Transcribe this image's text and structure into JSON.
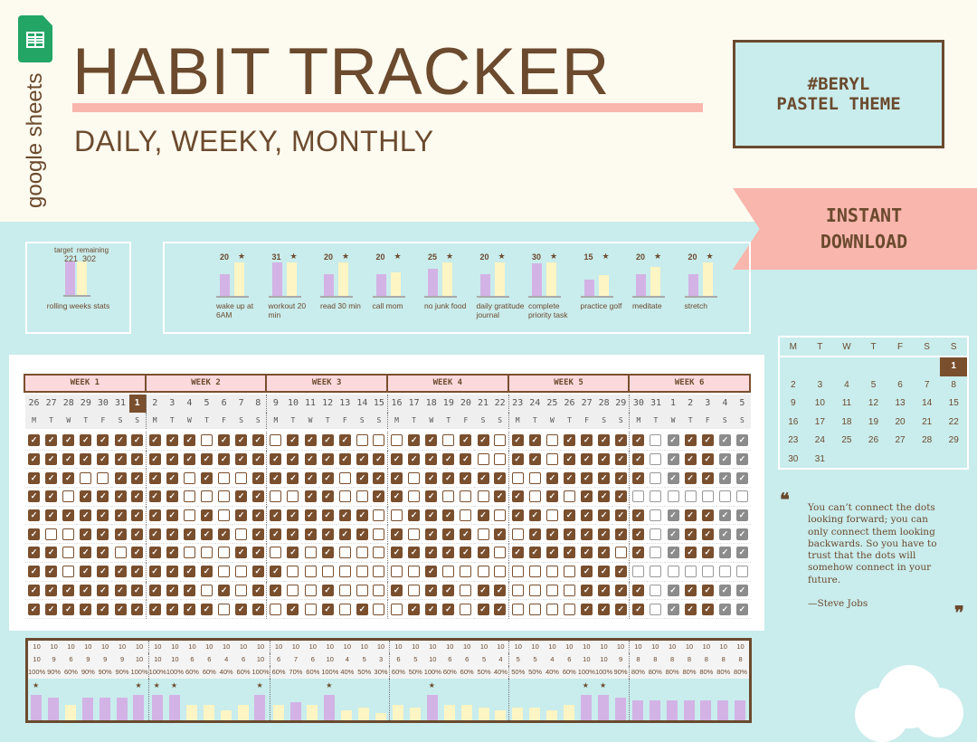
{
  "brand": {
    "app": "google sheets",
    "icon": "google-sheets-icon"
  },
  "header": {
    "title": "HABIT TRACKER",
    "subtitle": "DAILY, WEEKY, MONTHLY"
  },
  "theme_badge": {
    "line1": "#BERYL",
    "line2": "PASTEL THEME"
  },
  "banner": {
    "line1": "INSTANT",
    "line2": "DOWNLOAD"
  },
  "colors": {
    "brown": "#6b4a2e",
    "pink": "#f9b6ad",
    "teal": "#c9ecec",
    "cream": "#fdfbf0",
    "purple": "#d3b3e5",
    "yellow": "#fdf5c4",
    "header_pink": "#fcd9dc"
  },
  "rolling": {
    "target_label": "target",
    "remaining_label": "remaining",
    "target": "221",
    "remaining": "302",
    "label": "rolling weeks stats"
  },
  "habits": [
    {
      "name": "wake up at 6AM",
      "count": "20",
      "done": 20,
      "goal": 31
    },
    {
      "name": "workout 20 min",
      "count": "31",
      "done": 31,
      "goal": 31
    },
    {
      "name": "read 30 min",
      "count": "20",
      "done": 20,
      "goal": 31
    },
    {
      "name": "call mom",
      "count": "20",
      "done": 20,
      "goal": 22
    },
    {
      "name": "no junk food",
      "count": "25",
      "done": 25,
      "goal": 31
    },
    {
      "name": "daily gratitude journal",
      "count": "20",
      "done": 20,
      "goal": 31
    },
    {
      "name": "complete priority task",
      "count": "30",
      "done": 30,
      "goal": 31
    },
    {
      "name": "practice golf",
      "count": "15",
      "done": 15,
      "goal": 19
    },
    {
      "name": "meditate",
      "count": "20",
      "done": 20,
      "goal": 27
    },
    {
      "name": "stretch",
      "count": "20",
      "done": 20,
      "goal": 31
    }
  ],
  "star": "★",
  "weeks": [
    "WEEK 1",
    "WEEK 2",
    "WEEK 3",
    "WEEK 4",
    "WEEK 5",
    "WEEK 6"
  ],
  "dates": [
    "26",
    "27",
    "28",
    "29",
    "30",
    "31",
    "1",
    "2",
    "3",
    "4",
    "5",
    "6",
    "7",
    "8",
    "9",
    "10",
    "11",
    "12",
    "13",
    "14",
    "15",
    "16",
    "17",
    "18",
    "19",
    "20",
    "21",
    "22",
    "23",
    "24",
    "25",
    "26",
    "27",
    "28",
    "29",
    "30",
    "31",
    "1",
    "2",
    "3",
    "4",
    "5"
  ],
  "today_index": 6,
  "weekdays": [
    "M",
    "T",
    "W",
    "T",
    "F",
    "S",
    "S"
  ],
  "grid": [
    "1111111111011101111000110110110111110g11ggg",
    "1111111111111111111111111100110111110g11ggg",
    "1110011110100111110111011111001111110g11ggg",
    "1101111110001100110011010001101011100000000",
    "1111111110101111111100111010110111110g11ggg",
    "1001111111110111111101011101011111110g11ggg",
    "1101101110001101010001111110111111010g11ggg",
    "1101111111100110000000010000000011100000000",
    "1111111111010110010001011011000011110g11ggg",
    "1111111111101101010100111011000011110g11ggg"
  ],
  "totals": [
    "10",
    "10",
    "10",
    "10",
    "10",
    "10",
    "10",
    "10",
    "10",
    "10",
    "10",
    "10",
    "10",
    "10",
    "10",
    "10",
    "10",
    "10",
    "10",
    "10",
    "10",
    "10",
    "10",
    "10",
    "10",
    "10",
    "10",
    "10",
    "10",
    "10",
    "10",
    "10",
    "10",
    "10",
    "10",
    "10",
    "10",
    "10",
    "10",
    "10",
    "10",
    "10"
  ],
  "done": [
    "10",
    "9",
    "6",
    "9",
    "9",
    "9",
    "10",
    "10",
    "10",
    "6",
    "6",
    "4",
    "6",
    "10",
    "6",
    "7",
    "6",
    "10",
    "4",
    "5",
    "3",
    "6",
    "5",
    "10",
    "6",
    "6",
    "5",
    "4",
    "5",
    "5",
    "4",
    "6",
    "10",
    "10",
    "9",
    "8",
    "8",
    "8",
    "8",
    "8",
    "8",
    "8"
  ],
  "pct": [
    "100%",
    "90%",
    "60%",
    "90%",
    "90%",
    "90%",
    "100%",
    "100%",
    "100%",
    "60%",
    "60%",
    "40%",
    "60%",
    "100%",
    "60%",
    "70%",
    "60%",
    "100%",
    "40%",
    "50%",
    "30%",
    "60%",
    "50%",
    "100%",
    "60%",
    "60%",
    "50%",
    "40%",
    "50%",
    "50%",
    "40%",
    "60%",
    "100%",
    "100%",
    "90%",
    "80%",
    "80%",
    "80%",
    "80%",
    "80%",
    "80%",
    "80%"
  ],
  "calendar": {
    "headers": [
      "M",
      "T",
      "W",
      "T",
      "F",
      "S",
      "S"
    ],
    "days": [
      "",
      "",
      "",
      "",
      "",
      "",
      "1",
      "2",
      "3",
      "4",
      "5",
      "6",
      "7",
      "8",
      "9",
      "10",
      "11",
      "12",
      "13",
      "14",
      "15",
      "16",
      "17",
      "18",
      "19",
      "20",
      "21",
      "22",
      "23",
      "24",
      "25",
      "26",
      "27",
      "28",
      "29",
      "30",
      "31"
    ],
    "today": "1"
  },
  "quote": {
    "open": "❝",
    "close": "❞",
    "text": "You can’t connect the dots looking forward; you can only connect them looking backwards. So you have to trust that the dots will somehow connect in your future.",
    "author": "—Steve Jobs"
  }
}
